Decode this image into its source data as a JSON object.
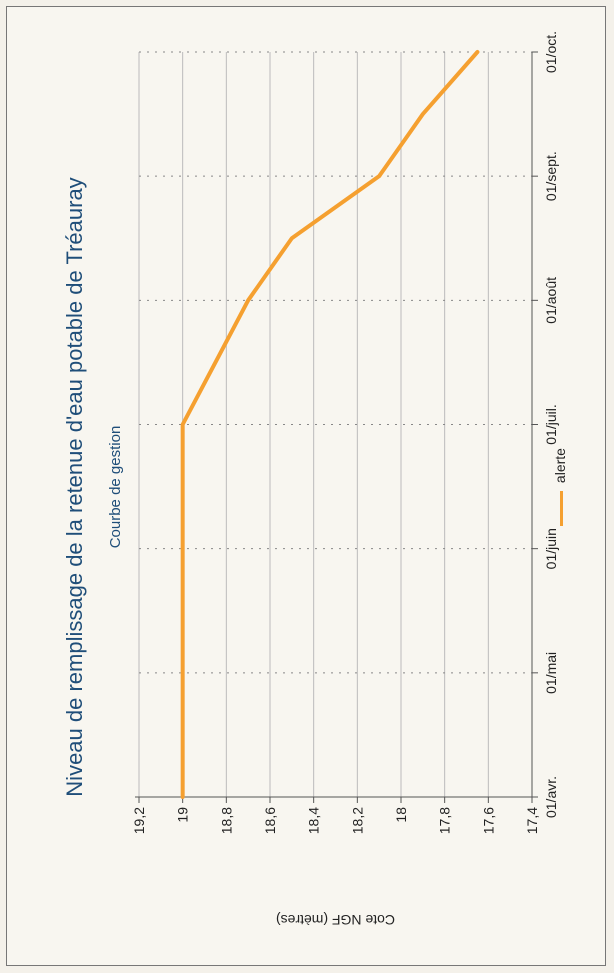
{
  "chart_data": {
    "type": "line",
    "title": "Niveau de remplissage de la retenue d'eau potable de Tréauray",
    "subtitle": "Courbe de gestion",
    "ylabel": "Cote NGF (mètres)",
    "xlabel": "",
    "ylim": [
      17.4,
      19.2
    ],
    "yticks": [
      "17,4",
      "17,6",
      "17,8",
      "18",
      "18,2",
      "18,4",
      "18,6",
      "18,8",
      "19",
      "19,2"
    ],
    "categories": [
      "01/avr.",
      "01/mai",
      "01/juin",
      "01/juil.",
      "01/août",
      "01/sept.",
      "01/oct."
    ],
    "grid": true,
    "legend_position": "bottom",
    "series": [
      {
        "name": "alerte",
        "color": "#f5a030",
        "x": [
          0,
          1,
          2,
          3,
          3.5,
          4,
          4.5,
          5,
          5.5,
          6
        ],
        "y": [
          19.0,
          19.0,
          19.0,
          19.0,
          18.85,
          18.7,
          18.5,
          18.1,
          17.9,
          17.65
        ]
      }
    ]
  }
}
